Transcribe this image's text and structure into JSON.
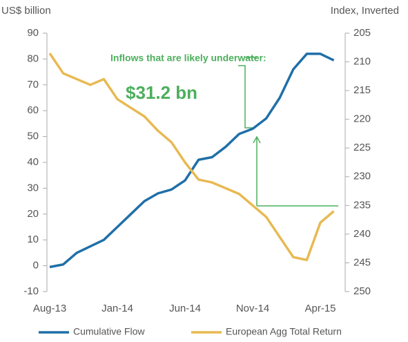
{
  "chart_data": {
    "type": "line",
    "ylabel": "US$ billion",
    "y2label": "Index, Inverted",
    "annotation": "Inflows that are likely underwater:",
    "annotation_value": "$31.2 bn",
    "categories": [
      "Aug-13",
      null,
      null,
      null,
      null,
      "Jan-14",
      null,
      null,
      null,
      null,
      "Jun-14",
      null,
      null,
      null,
      null,
      "Nov-14",
      null,
      null,
      null,
      null,
      "Apr-15",
      null
    ],
    "series": [
      {
        "name": "Cumulative Flow",
        "color": "#1f6fa8",
        "axis": "y",
        "values": [
          -0.5,
          0.5,
          5,
          7.5,
          10,
          15,
          20,
          25,
          28,
          29.5,
          33,
          41,
          42,
          46,
          51,
          53,
          57,
          65,
          76,
          82,
          82,
          79.5
        ]
      },
      {
        "name": "European Agg Total Return",
        "color": "#e8b952",
        "axis": "y2",
        "values": [
          208.5,
          212,
          213,
          214,
          213,
          216.5,
          218,
          219.5,
          222,
          224,
          227.5,
          230.5,
          231,
          232,
          233,
          235,
          237,
          240.5,
          244,
          244.5,
          238,
          236
        ]
      }
    ],
    "ylim": [
      -10,
      90
    ],
    "yticks": [
      -10,
      0,
      10,
      20,
      30,
      40,
      50,
      60,
      70,
      80,
      90
    ],
    "y2lim": [
      205,
      250
    ],
    "y2ticks": [
      205,
      210,
      215,
      220,
      225,
      230,
      235,
      240,
      245,
      250
    ],
    "y2_inverted": true,
    "legend": "bottom"
  }
}
